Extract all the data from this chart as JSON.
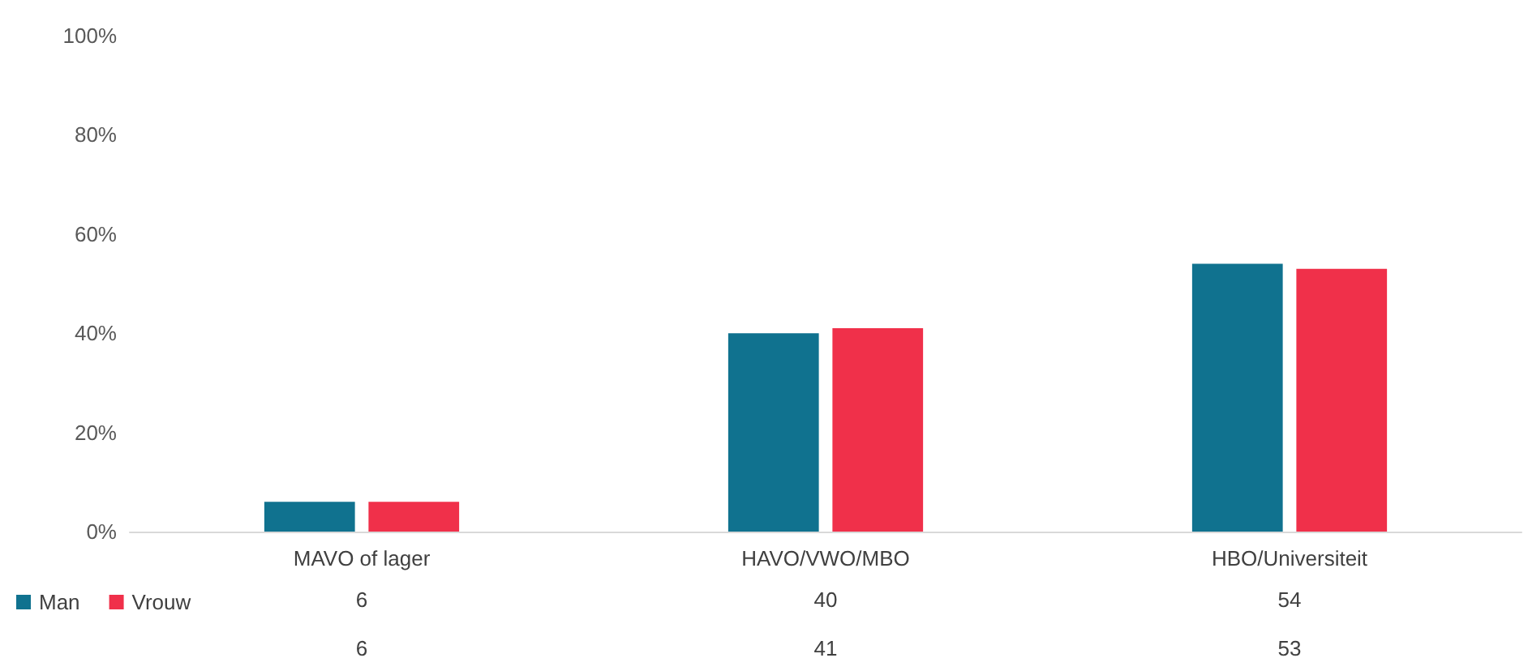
{
  "chart_data": {
    "type": "bar",
    "categories": [
      "MAVO of lager",
      "HAVO/VWO/MBO",
      "HBO/Universiteit"
    ],
    "series": [
      {
        "name": "Man",
        "color": "#10728f",
        "values": [
          6,
          40,
          54
        ]
      },
      {
        "name": "Vrouw",
        "color": "#f0304a",
        "values": [
          6,
          41,
          53
        ]
      }
    ],
    "ylim": [
      0,
      100
    ],
    "yticks": [
      {
        "value": 0,
        "label": "0%"
      },
      {
        "value": 20,
        "label": "20%"
      },
      {
        "value": 40,
        "label": "40%"
      },
      {
        "value": 60,
        "label": "60%"
      },
      {
        "value": 80,
        "label": "80%"
      },
      {
        "value": 100,
        "label": "100%"
      }
    ],
    "grid": false,
    "legend": "bottom left",
    "data_labels": true
  }
}
